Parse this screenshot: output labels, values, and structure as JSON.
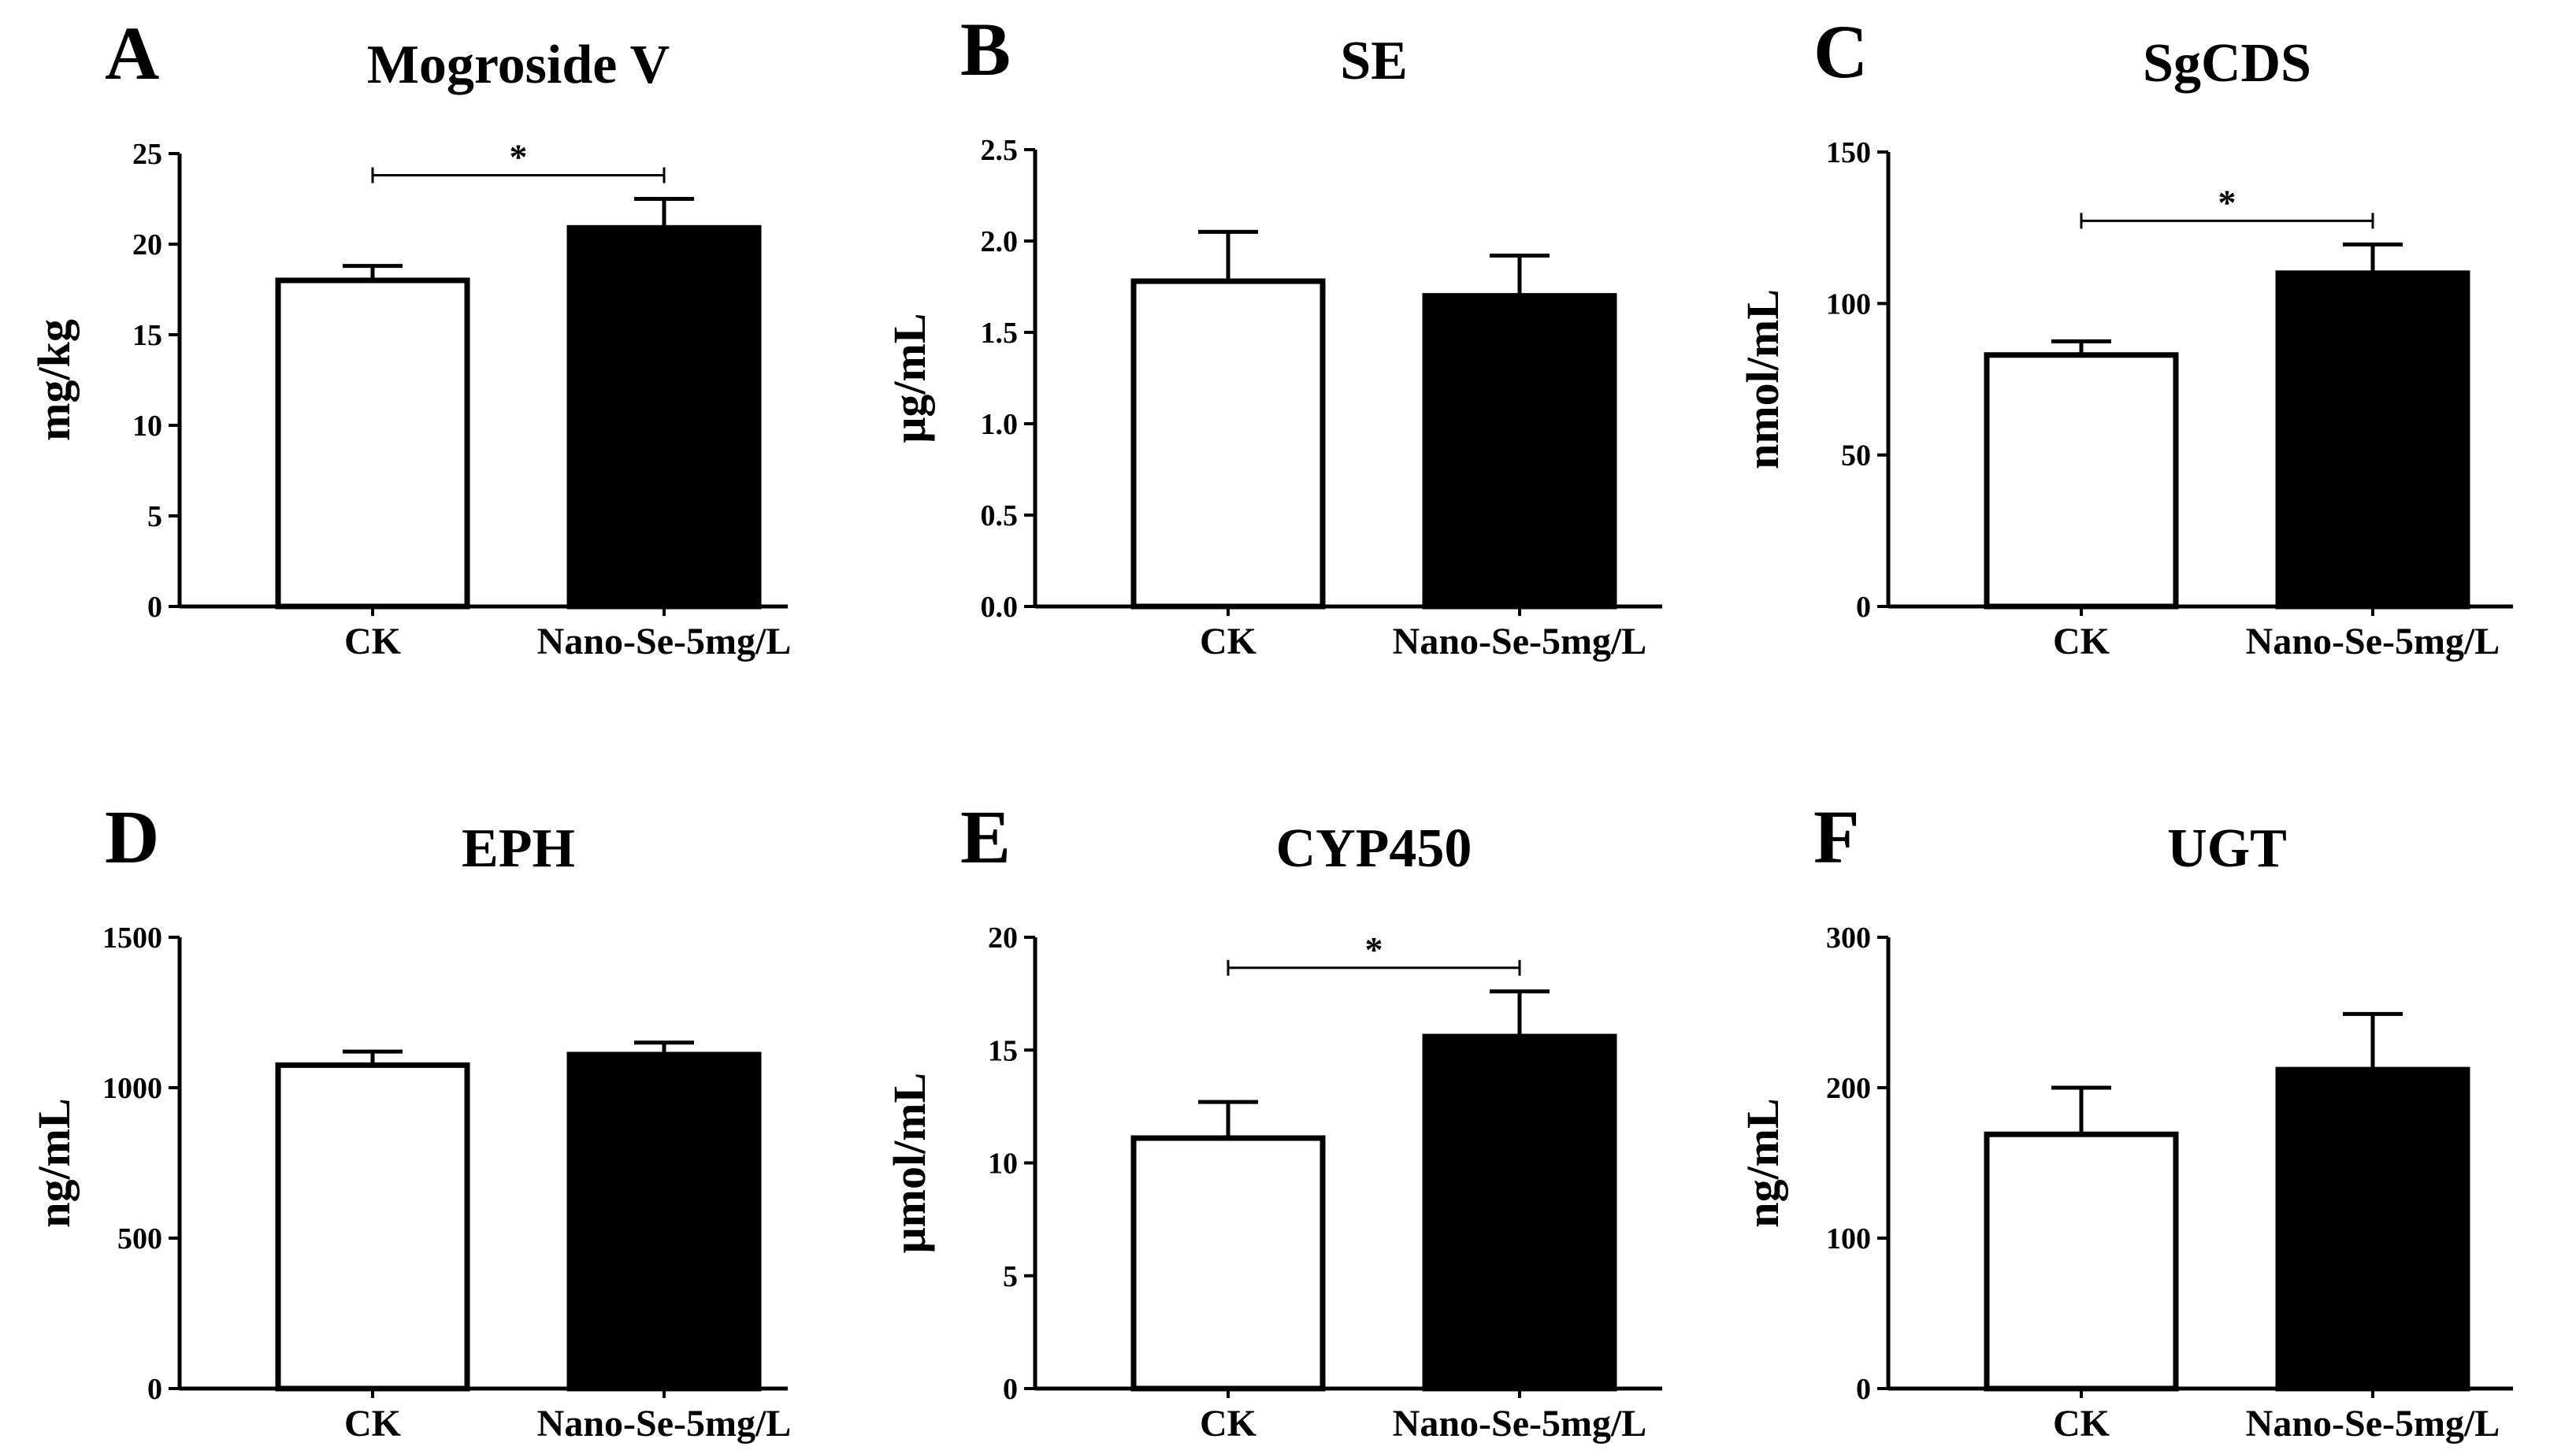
{
  "figure": {
    "categories": [
      "CK",
      "Nano-Se-5mg/L"
    ],
    "colors": {
      "ck_fill": "#ffffff",
      "treatment_fill": "#000000",
      "stroke": "#000000"
    }
  },
  "chart_data": [
    {
      "type": "bar",
      "letter": "A",
      "title": "Mogroside V",
      "ylabel": "mg/kg",
      "categories": [
        "CK",
        "Nano-Se-5mg/L"
      ],
      "values": [
        18.0,
        20.9
      ],
      "errors": [
        0.8,
        1.6
      ],
      "ylim": [
        0,
        25
      ],
      "yticks": [
        "0",
        "5",
        "10",
        "15",
        "20",
        "25"
      ],
      "significance": "*"
    },
    {
      "type": "bar",
      "letter": "B",
      "title": "SE",
      "ylabel": "μg/mL",
      "categories": [
        "CK",
        "Nano-Se-5mg/L"
      ],
      "values": [
        1.78,
        1.7
      ],
      "errors": [
        0.27,
        0.22
      ],
      "ylim": [
        0,
        2.5
      ],
      "yticks": [
        "0.0",
        "0.5",
        "1.0",
        "1.5",
        "2.0",
        "2.5"
      ],
      "significance": ""
    },
    {
      "type": "bar",
      "letter": "C",
      "title": "SgCDS",
      "ylabel": "nmol/mL",
      "categories": [
        "CK",
        "Nano-Se-5mg/L"
      ],
      "values": [
        83,
        110
      ],
      "errors": [
        4.5,
        9.5
      ],
      "ylim": [
        0,
        150
      ],
      "yticks": [
        "0",
        "50",
        "100",
        "150"
      ],
      "significance": "*"
    },
    {
      "type": "bar",
      "letter": "D",
      "title": "EPH",
      "ylabel": "ng/mL",
      "categories": [
        "CK",
        "Nano-Se-5mg/L"
      ],
      "values": [
        1075,
        1110
      ],
      "errors": [
        45,
        40
      ],
      "ylim": [
        0,
        1500
      ],
      "yticks": [
        "0",
        "500",
        "1000",
        "1500"
      ],
      "significance": ""
    },
    {
      "type": "bar",
      "letter": "E",
      "title": "CYP450",
      "ylabel": "μmol/mL",
      "categories": [
        "CK",
        "Nano-Se-5mg/L"
      ],
      "values": [
        11.1,
        15.6
      ],
      "errors": [
        1.6,
        2.0
      ],
      "ylim": [
        0,
        20
      ],
      "yticks": [
        "0",
        "5",
        "10",
        "15",
        "20"
      ],
      "significance": "*"
    },
    {
      "type": "bar",
      "letter": "F",
      "title": "UGT",
      "ylabel": "ng/mL",
      "categories": [
        "CK",
        "Nano-Se-5mg/L"
      ],
      "values": [
        169,
        212
      ],
      "errors": [
        31,
        37
      ],
      "ylim": [
        0,
        300
      ],
      "yticks": [
        "0",
        "100",
        "200",
        "300"
      ],
      "significance": ""
    }
  ]
}
